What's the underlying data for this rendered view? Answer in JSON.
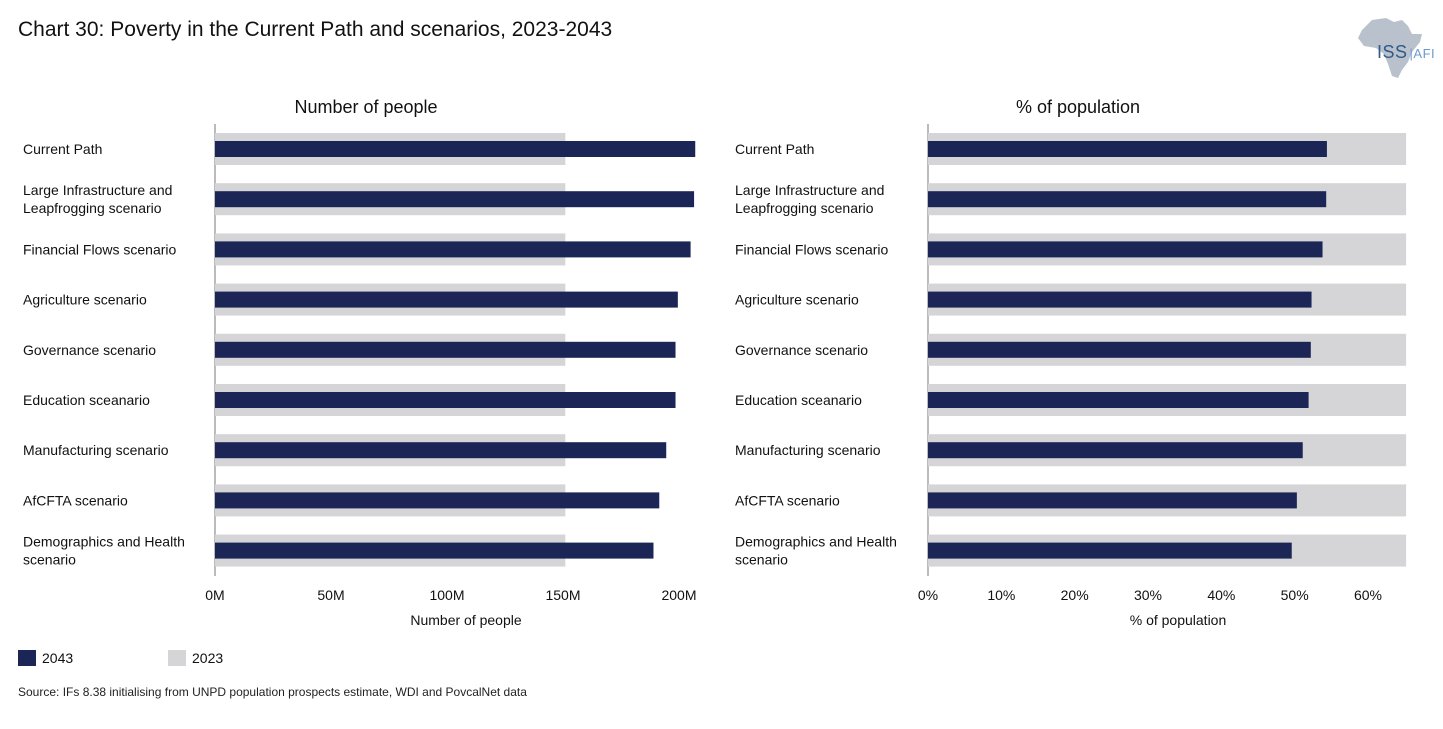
{
  "title": "Chart 30: Poverty in the Current Path and scenarios, 2023-2043",
  "logo": {
    "text": "ISS",
    "suffix": "AFI"
  },
  "legend": [
    {
      "label": "2043",
      "color": "#1b2657"
    },
    {
      "label": "2023",
      "color": "#d5d5d7"
    }
  ],
  "source": "Source: IFs 8.38 initialising from UNPD population prospects estimate, WDI and PovcalNet data",
  "chart_data": [
    {
      "type": "bar",
      "orientation": "horizontal",
      "title": "Number of people",
      "xlabel": "Number of people",
      "ylabel": "",
      "xlim": [
        0,
        210
      ],
      "unit": "M",
      "ticks": [
        "0M",
        "50M",
        "100M",
        "150M",
        "200M"
      ],
      "tick_values": [
        0,
        50,
        100,
        150,
        200
      ],
      "categories": [
        "Current Path",
        "Large Infrastructure and Leapfrogging scenario",
        "Financial Flows scenario",
        "Agriculture scenario",
        "Governance scenario",
        "Education sceanario",
        "Manufacturing scenario",
        "AfCFTA scenario",
        "Demographics and Health scenario"
      ],
      "series": [
        {
          "name": "2023",
          "values": [
            151,
            151,
            151,
            151,
            151,
            151,
            151,
            151,
            151
          ]
        },
        {
          "name": "2043",
          "values": [
            207,
            206.5,
            205,
            199.5,
            198.5,
            198.5,
            194.5,
            191.5,
            189
          ]
        }
      ]
    },
    {
      "type": "bar",
      "orientation": "horizontal",
      "title": "% of population",
      "xlabel": "% of population",
      "ylabel": "",
      "xlim": [
        0,
        65
      ],
      "unit": "%",
      "ticks": [
        "0%",
        "10%",
        "20%",
        "30%",
        "40%",
        "50%",
        "60%"
      ],
      "tick_values": [
        0,
        10,
        20,
        30,
        40,
        50,
        60
      ],
      "categories": [
        "Current Path",
        "Large Infrastructure and Leapfrogging scenario",
        "Financial Flows scenario",
        "Agriculture scenario",
        "Governance scenario",
        "Education sceanario",
        "Manufacturing scenario",
        "AfCFTA scenario",
        "Demographics and Health scenario"
      ],
      "series": [
        {
          "name": "2023",
          "values": [
            65.2,
            65.2,
            65.2,
            65.2,
            65.2,
            65.2,
            65.2,
            65.2,
            65.2
          ]
        },
        {
          "name": "2043",
          "values": [
            54.4,
            54.3,
            53.8,
            52.3,
            52.2,
            51.9,
            51.1,
            50.3,
            49.6
          ]
        }
      ]
    }
  ]
}
